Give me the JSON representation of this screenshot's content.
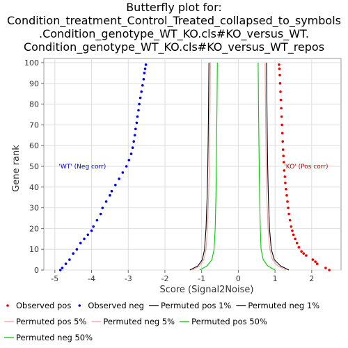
{
  "chart_data": {
    "type": "scatter",
    "title_lines": [
      "Butterfly plot for:",
      "Condition_treatment_Control_Treated_collapsed_to_symbols",
      ".Condition_genotype_WT_KO.cls#KO_versus_WT.",
      "Condition_genotype_WT_KO.cls#KO_versus_WT_repos"
    ],
    "xlabel": "Score (Signal2Noise)",
    "ylabel": "Gene rank",
    "xlim": [
      -5.3,
      2.8
    ],
    "ylim": [
      0,
      102
    ],
    "x_ticks": [
      -5,
      -4,
      -3,
      -2,
      -1,
      0,
      1,
      2
    ],
    "y_ticks": [
      0,
      10,
      20,
      30,
      40,
      50,
      60,
      70,
      80,
      90,
      100
    ],
    "grid": true,
    "legend_placement": "bottom",
    "annotations": [
      {
        "text": "'WT' (Neg corr)",
        "x": -4.25,
        "y": 50,
        "color": "#0000cc"
      },
      {
        "text": "'KO' (Pos corr)",
        "x": 1.85,
        "y": 50,
        "color": "#cc0000"
      }
    ],
    "legend": [
      {
        "label": "Observed pos",
        "kind": "dot",
        "color": "#ee0000"
      },
      {
        "label": "Observed neg",
        "kind": "dot",
        "color": "#0000ee"
      },
      {
        "label": "Permuted pos 1%",
        "kind": "line",
        "color": "#000000"
      },
      {
        "label": "Permuted neg 1%",
        "kind": "line",
        "color": "#000000"
      },
      {
        "label": "Permuted pos 5%",
        "kind": "line",
        "color": "#f0a0a0"
      },
      {
        "label": "Permuted neg 5%",
        "kind": "line",
        "color": "#f0a0a0"
      },
      {
        "label": "Permuted pos 50%",
        "kind": "line",
        "color": "#00cc00"
      },
      {
        "label": "Permuted neg 50%",
        "kind": "line",
        "color": "#00cc00"
      }
    ],
    "series": [
      {
        "name": "Observed pos",
        "kind": "points",
        "color": "#ee0000",
        "points": [
          [
            2.48,
            0
          ],
          [
            2.38,
            1
          ],
          [
            2.15,
            3
          ],
          [
            2.1,
            4
          ],
          [
            2.03,
            5
          ],
          [
            1.85,
            7
          ],
          [
            1.78,
            8
          ],
          [
            1.72,
            9
          ],
          [
            1.65,
            11
          ],
          [
            1.6,
            13
          ],
          [
            1.55,
            15
          ],
          [
            1.5,
            17
          ],
          [
            1.47,
            19
          ],
          [
            1.44,
            21
          ],
          [
            1.41,
            24
          ],
          [
            1.38,
            27
          ],
          [
            1.36,
            30
          ],
          [
            1.34,
            33
          ],
          [
            1.32,
            36
          ],
          [
            1.3,
            39
          ],
          [
            1.28,
            42
          ],
          [
            1.27,
            45
          ],
          [
            1.25,
            48
          ],
          [
            1.24,
            52
          ],
          [
            1.23,
            55
          ],
          [
            1.22,
            58
          ],
          [
            1.21,
            62
          ],
          [
            1.2,
            66
          ],
          [
            1.19,
            70
          ],
          [
            1.18,
            74
          ],
          [
            1.17,
            78
          ],
          [
            1.16,
            82
          ],
          [
            1.15,
            86
          ],
          [
            1.14,
            90
          ],
          [
            1.13,
            94
          ],
          [
            1.12,
            97
          ],
          [
            1.11,
            99
          ]
        ]
      },
      {
        "name": "Observed neg",
        "kind": "points",
        "color": "#0000ee",
        "points": [
          [
            -4.85,
            0
          ],
          [
            -4.8,
            1
          ],
          [
            -4.7,
            3
          ],
          [
            -4.6,
            5
          ],
          [
            -4.5,
            8
          ],
          [
            -4.4,
            10
          ],
          [
            -4.3,
            13
          ],
          [
            -4.2,
            15
          ],
          [
            -4.1,
            17
          ],
          [
            -4.0,
            19
          ],
          [
            -3.95,
            21
          ],
          [
            -3.85,
            24
          ],
          [
            -3.75,
            27
          ],
          [
            -3.7,
            30
          ],
          [
            -3.6,
            33
          ],
          [
            -3.5,
            36
          ],
          [
            -3.45,
            38
          ],
          [
            -3.35,
            41
          ],
          [
            -3.25,
            44
          ],
          [
            -3.15,
            47
          ],
          [
            -3.05,
            50
          ],
          [
            -2.98,
            53
          ],
          [
            -2.92,
            56
          ],
          [
            -2.88,
            59
          ],
          [
            -2.85,
            62
          ],
          [
            -2.82,
            65
          ],
          [
            -2.8,
            68
          ],
          [
            -2.77,
            71
          ],
          [
            -2.75,
            74
          ],
          [
            -2.72,
            77
          ],
          [
            -2.7,
            80
          ],
          [
            -2.67,
            83
          ],
          [
            -2.64,
            86
          ],
          [
            -2.61,
            89
          ],
          [
            -2.58,
            92
          ],
          [
            -2.56,
            95
          ],
          [
            -2.54,
            97
          ],
          [
            -2.52,
            99
          ]
        ]
      },
      {
        "name": "Permuted pos 1%",
        "kind": "line",
        "color": "#000000",
        "points": [
          [
            1.38,
            0
          ],
          [
            1.15,
            2
          ],
          [
            0.98,
            5
          ],
          [
            0.9,
            10
          ],
          [
            0.85,
            20
          ],
          [
            0.82,
            35
          ],
          [
            0.8,
            50
          ],
          [
            0.79,
            65
          ],
          [
            0.78,
            80
          ],
          [
            0.77,
            100
          ]
        ]
      },
      {
        "name": "Permuted neg 1%",
        "kind": "line",
        "color": "#000000",
        "points": [
          [
            -1.32,
            0
          ],
          [
            -1.1,
            2
          ],
          [
            -0.98,
            5
          ],
          [
            -0.92,
            10
          ],
          [
            -0.88,
            20
          ],
          [
            -0.85,
            35
          ],
          [
            -0.83,
            50
          ],
          [
            -0.82,
            65
          ],
          [
            -0.81,
            80
          ],
          [
            -0.8,
            100
          ]
        ]
      },
      {
        "name": "Permuted pos 5%",
        "kind": "line",
        "color": "#f0a0a0",
        "points": [
          [
            1.3,
            0
          ],
          [
            1.08,
            2
          ],
          [
            0.93,
            5
          ],
          [
            0.86,
            10
          ],
          [
            0.81,
            20
          ],
          [
            0.78,
            35
          ],
          [
            0.76,
            50
          ],
          [
            0.75,
            65
          ],
          [
            0.74,
            80
          ],
          [
            0.73,
            100
          ]
        ]
      },
      {
        "name": "Permuted neg 5%",
        "kind": "line",
        "color": "#f0a0a0",
        "points": [
          [
            -1.25,
            0
          ],
          [
            -1.05,
            2
          ],
          [
            -0.94,
            5
          ],
          [
            -0.88,
            10
          ],
          [
            -0.84,
            20
          ],
          [
            -0.81,
            35
          ],
          [
            -0.79,
            50
          ],
          [
            -0.78,
            65
          ],
          [
            -0.77,
            80
          ],
          [
            -0.76,
            100
          ]
        ]
      },
      {
        "name": "Permuted pos 50%",
        "kind": "line",
        "color": "#00cc00",
        "points": [
          [
            1.0,
            0
          ],
          [
            0.8,
            2
          ],
          [
            0.68,
            5
          ],
          [
            0.62,
            10
          ],
          [
            0.6,
            20
          ],
          [
            0.58,
            35
          ],
          [
            0.57,
            50
          ],
          [
            0.56,
            65
          ],
          [
            0.55,
            80
          ],
          [
            0.54,
            100
          ]
        ]
      },
      {
        "name": "Permuted neg 50%",
        "kind": "line",
        "color": "#00cc00",
        "points": [
          [
            -1.05,
            0
          ],
          [
            -0.85,
            2
          ],
          [
            -0.72,
            5
          ],
          [
            -0.66,
            10
          ],
          [
            -0.63,
            20
          ],
          [
            -0.61,
            35
          ],
          [
            -0.6,
            50
          ],
          [
            -0.59,
            65
          ],
          [
            -0.58,
            80
          ],
          [
            -0.57,
            100
          ]
        ]
      }
    ]
  }
}
